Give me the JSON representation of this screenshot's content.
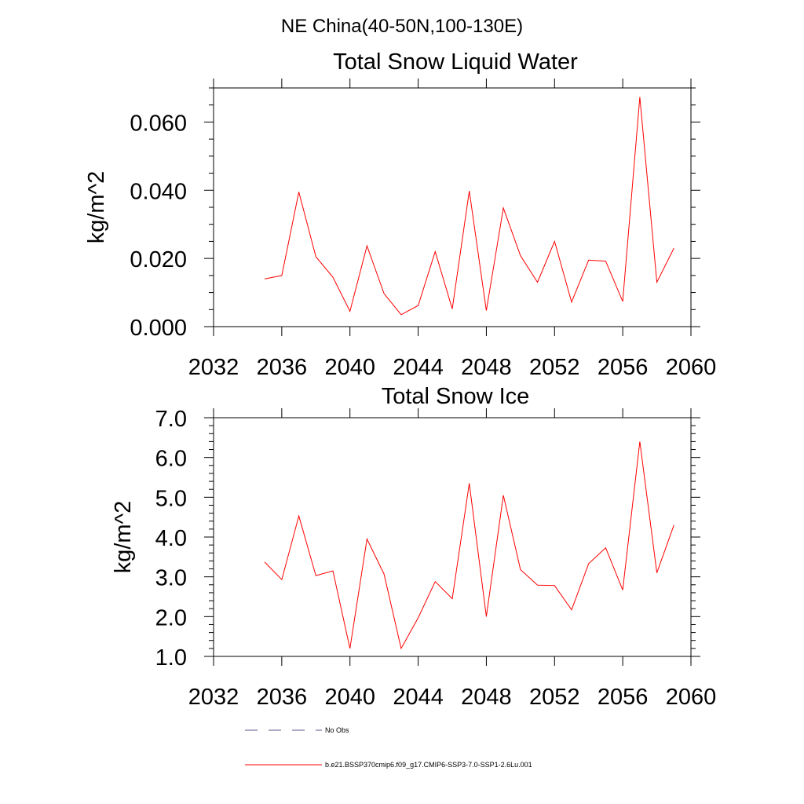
{
  "suptitle": "NE China(40-50N,100-130E)",
  "chart_data": [
    {
      "type": "line",
      "title": "Total Snow Liquid Water",
      "xlabel": "",
      "ylabel": "kg/m^2",
      "xlim": [
        2032,
        2060
      ],
      "ylim": [
        0.0,
        0.07
      ],
      "xticks": [
        2032,
        2036,
        2040,
        2044,
        2048,
        2052,
        2056,
        2060
      ],
      "xtick_labels": [
        "2032",
        "2036",
        "2040",
        "2044",
        "2048",
        "2052",
        "2056",
        "2060"
      ],
      "yticks": [
        0.0,
        0.02,
        0.04,
        0.06
      ],
      "ytick_labels": [
        "0.000",
        "0.020",
        "0.040",
        "0.060"
      ],
      "grid": false,
      "series": [
        {
          "name": "b.e21.BSSP370cmip6.f09_g17.CMIP6-SSP3-7.0-SSP1-2.6Lu.001",
          "color": "#ff0000",
          "x": [
            2035,
            2036,
            2037,
            2038,
            2039,
            2040,
            2041,
            2042,
            2043,
            2044,
            2045,
            2046,
            2047,
            2048,
            2049,
            2050,
            2051,
            2052,
            2053,
            2054,
            2055,
            2056,
            2057,
            2058,
            2059
          ],
          "y": [
            0.014,
            0.015,
            0.0395,
            0.0205,
            0.0145,
            0.0045,
            0.0237,
            0.0097,
            0.0035,
            0.0062,
            0.022,
            0.0052,
            0.0398,
            0.0047,
            0.0348,
            0.0208,
            0.013,
            0.025,
            0.0072,
            0.0195,
            0.0192,
            0.0074,
            0.0673,
            0.013,
            0.023
          ]
        }
      ]
    },
    {
      "type": "line",
      "title": "Total Snow Ice",
      "xlabel": "",
      "ylabel": "kg/m^2",
      "xlim": [
        2032,
        2060
      ],
      "ylim": [
        1.0,
        7.0
      ],
      "xticks": [
        2032,
        2036,
        2040,
        2044,
        2048,
        2052,
        2056,
        2060
      ],
      "xtick_labels": [
        "2032",
        "2036",
        "2040",
        "2044",
        "2048",
        "2052",
        "2056",
        "2060"
      ],
      "yticks": [
        1.0,
        2.0,
        3.0,
        4.0,
        5.0,
        6.0,
        7.0
      ],
      "ytick_labels": [
        "1.0",
        "2.0",
        "3.0",
        "4.0",
        "5.0",
        "6.0",
        "7.0"
      ],
      "grid": false,
      "series": [
        {
          "name": "b.e21.BSSP370cmip6.f09_g17.CMIP6-SSP3-7.0-SSP1-2.6Lu.001",
          "color": "#ff0000",
          "x": [
            2035,
            2036,
            2037,
            2038,
            2039,
            2040,
            2041,
            2042,
            2043,
            2044,
            2045,
            2046,
            2047,
            2048,
            2049,
            2050,
            2051,
            2052,
            2053,
            2054,
            2055,
            2056,
            2057,
            2058,
            2059
          ],
          "y": [
            3.37,
            2.93,
            4.53,
            3.03,
            3.15,
            1.2,
            3.95,
            3.07,
            1.2,
            1.97,
            2.88,
            2.45,
            5.35,
            2.0,
            5.05,
            3.18,
            2.79,
            2.78,
            2.17,
            3.33,
            3.73,
            2.67,
            6.4,
            3.1,
            4.3
          ]
        }
      ]
    }
  ],
  "legend": [
    {
      "label": "No Obs",
      "color": "#5a5a8c",
      "dash": "dashed"
    },
    {
      "label": "b.e21.BSSP370cmip6.f09_g17.CMIP6-SSP3-7.0-SSP1-2.6Lu.001",
      "color": "#ff0000",
      "dash": "solid"
    }
  ]
}
